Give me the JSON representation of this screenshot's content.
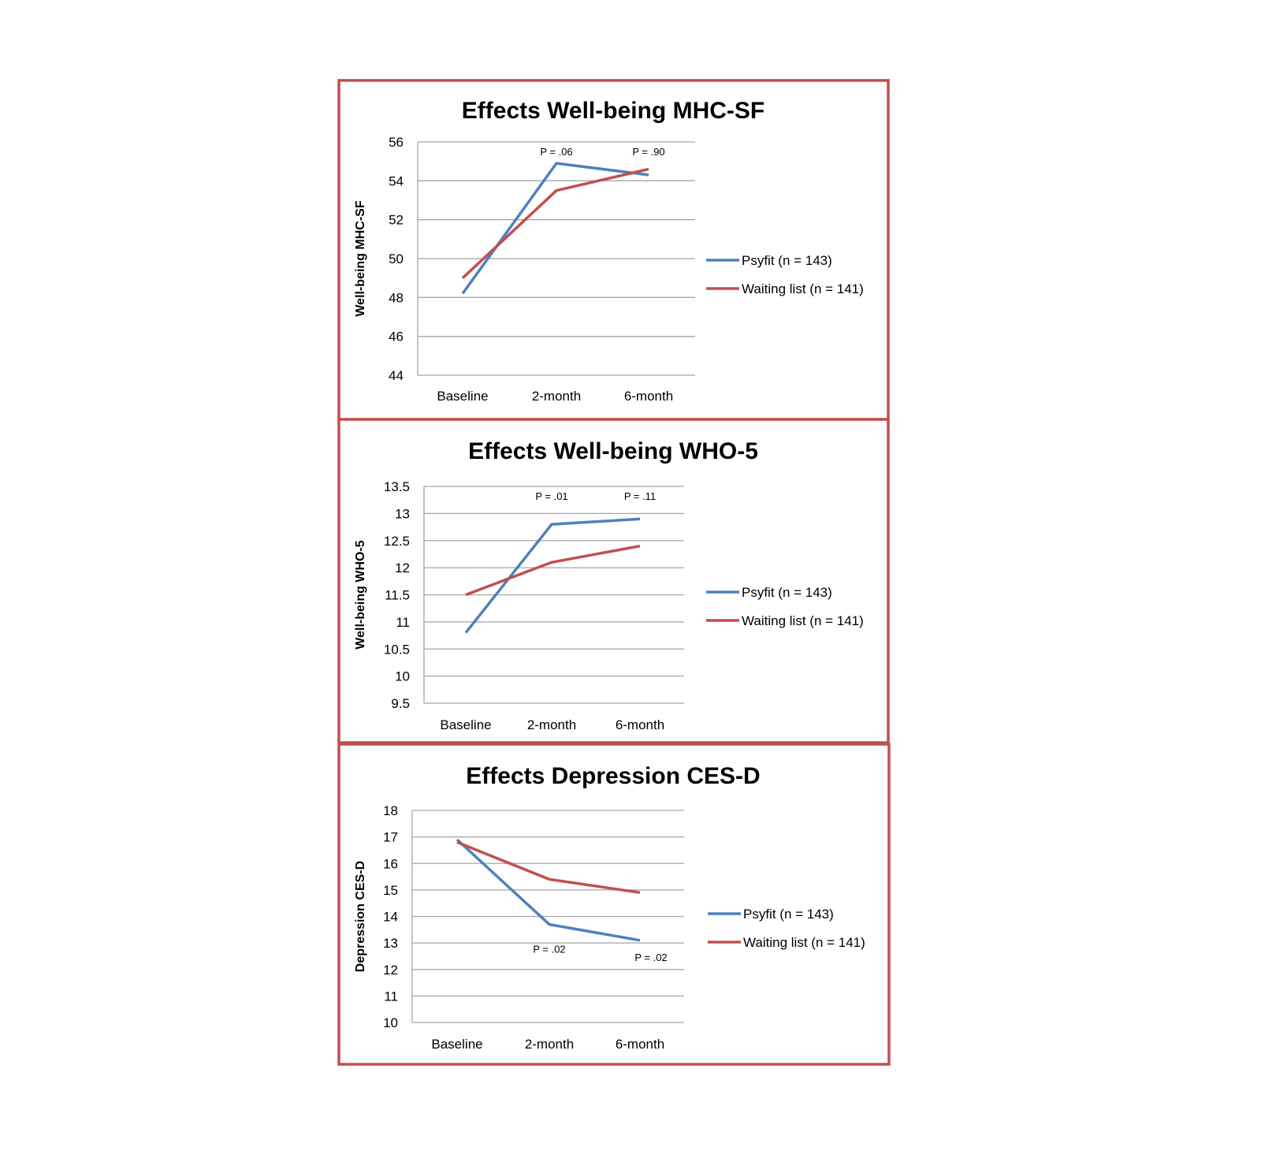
{
  "colors": {
    "frame": "#c0504d",
    "psyfit": "#4f81bd",
    "waiting_list": "#c0504d",
    "grid": "#a6a6a6"
  },
  "chart_data": [
    {
      "type": "line",
      "title": "Effects Well-being MHC-SF",
      "xlabel": "",
      "ylabel": "Well-being MHC-SF",
      "categories": [
        "Baseline",
        "2-month",
        "6-month"
      ],
      "ylim": [
        44,
        56
      ],
      "ytick_step": 2,
      "ytick_labels": [
        "44",
        "46",
        "48",
        "50",
        "52",
        "54",
        "56"
      ],
      "grid": true,
      "legend": "right",
      "series": [
        {
          "name": "Psyfit (n = 143)",
          "color_key": "psyfit",
          "values": [
            48.2,
            54.9,
            54.3
          ]
        },
        {
          "name": "Waiting list (n = 141)",
          "color_key": "waiting_list",
          "values": [
            49.0,
            53.5,
            54.6
          ]
        }
      ],
      "annotations": [
        {
          "text": "P = .06",
          "category": "2-month",
          "placement": "top"
        },
        {
          "text": "P = .90",
          "category": "6-month",
          "placement": "top"
        }
      ]
    },
    {
      "type": "line",
      "title": "Effects Well-being WHO-5",
      "xlabel": "",
      "ylabel": "Well-being WHO-5",
      "categories": [
        "Baseline",
        "2-month",
        "6-month"
      ],
      "ylim": [
        9.5,
        13.5
      ],
      "ytick_step": 0.5,
      "ytick_labels": [
        "9.5",
        "10",
        "10.5",
        "11",
        "11.5",
        "12",
        "12.5",
        "13",
        "13.5"
      ],
      "grid": true,
      "legend": "right",
      "series": [
        {
          "name": "Psyfit (n = 143)",
          "color_key": "psyfit",
          "values": [
            10.8,
            12.8,
            12.9
          ]
        },
        {
          "name": "Waiting list (n = 141)",
          "color_key": "waiting_list",
          "values": [
            11.5,
            12.1,
            12.4
          ]
        }
      ],
      "annotations": [
        {
          "text": "P = .01",
          "category": "2-month",
          "placement": "top"
        },
        {
          "text": "P = .11",
          "category": "6-month",
          "placement": "top"
        }
      ]
    },
    {
      "type": "line",
      "title": "Effects Depression CES-D",
      "xlabel": "",
      "ylabel": "Depression CES-D",
      "categories": [
        "Baseline",
        "2-month",
        "6-month"
      ],
      "ylim": [
        10,
        18
      ],
      "ytick_step": 1,
      "ytick_labels": [
        "10",
        "11",
        "12",
        "13",
        "14",
        "15",
        "16",
        "17",
        "18"
      ],
      "grid": true,
      "legend": "right",
      "series": [
        {
          "name": "Psyfit (n = 143)",
          "color_key": "psyfit",
          "values": [
            16.9,
            13.7,
            13.1
          ]
        },
        {
          "name": "Waiting list (n = 141)",
          "color_key": "waiting_list",
          "values": [
            16.8,
            15.4,
            14.9
          ]
        }
      ],
      "annotations": [
        {
          "text": "P = .02",
          "category": "2-month",
          "placement": "below-psyfit"
        },
        {
          "text": "P = .02",
          "category": "6-month",
          "placement": "below-psyfit"
        }
      ]
    }
  ]
}
